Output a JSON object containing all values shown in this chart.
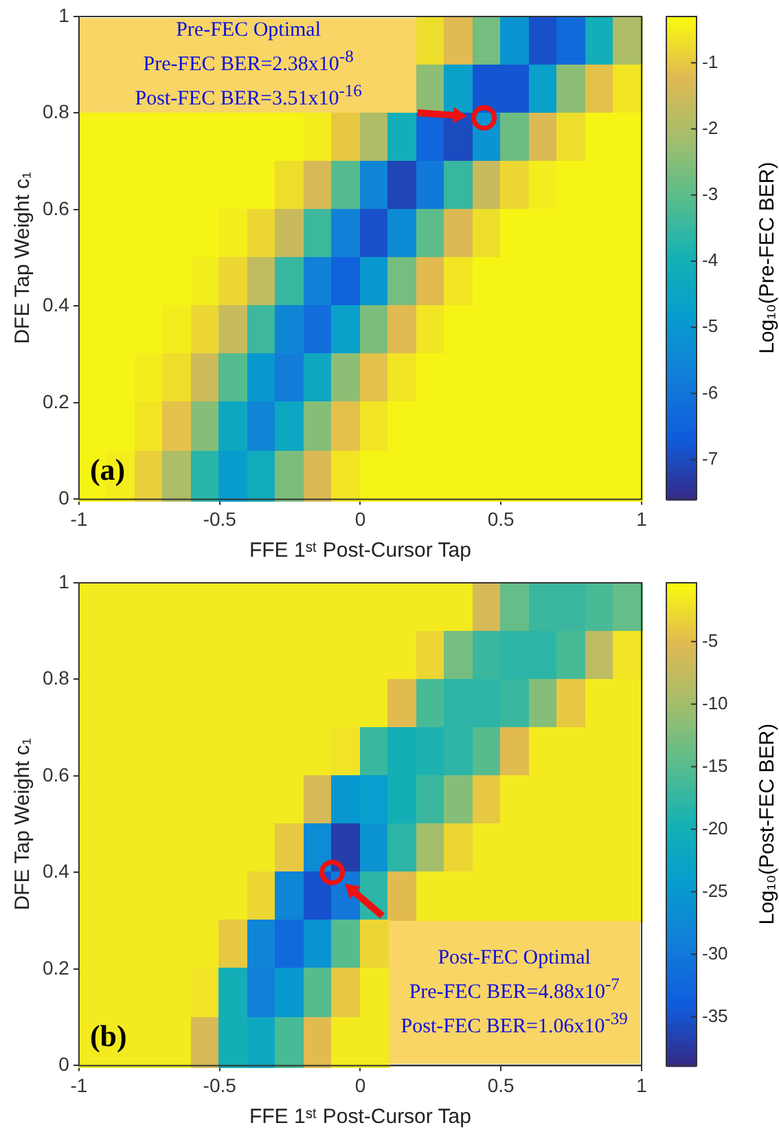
{
  "chart_data": [
    {
      "type": "heatmap",
      "xlabel": "FFE 1ˢᵗ Post-Cursor Tap",
      "ylabel": "DFE Tap Weight c₁",
      "clabel": "Log₁₀(Pre-FEC BER)",
      "xlim": [
        -1,
        1
      ],
      "ylim": [
        0,
        1
      ],
      "xticks": [
        -1,
        -0.5,
        0,
        0.5,
        1
      ],
      "yticks": [
        0,
        0.2,
        0.4,
        0.6,
        0.8,
        1
      ],
      "clim": [
        -7.6,
        -0.3
      ],
      "cticks": [
        -1,
        -2,
        -3,
        -4,
        -5,
        -6,
        -7
      ],
      "cells": [
        [
          null,
          null,
          null,
          null,
          null,
          null,
          null,
          null,
          null,
          null,
          null,
          null,
          -0.7,
          -1.2,
          -2.7,
          -5.1,
          -6.9,
          -6.3,
          -4.1,
          -2.0
        ],
        [
          null,
          null,
          null,
          null,
          null,
          null,
          null,
          null,
          null,
          null,
          null,
          null,
          -2.4,
          -4.7,
          -6.8,
          -6.8,
          -4.7,
          -2.4,
          -1.1,
          -0.6
        ],
        [
          -0.4,
          -0.4,
          -0.4,
          -0.4,
          -0.4,
          -0.4,
          -0.4,
          -0.4,
          -0.5,
          -1.0,
          -2.0,
          -4.1,
          -6.4,
          -7.0,
          -5.1,
          -2.8,
          -1.3,
          -0.7,
          -0.4,
          -0.4
        ],
        [
          -0.4,
          -0.4,
          -0.4,
          -0.4,
          -0.4,
          -0.4,
          -0.4,
          -0.7,
          -1.4,
          -3.1,
          -5.5,
          -7.1,
          -5.9,
          -3.5,
          -1.6,
          -0.8,
          -0.5,
          -0.4,
          -0.4,
          -0.4
        ],
        [
          -0.4,
          -0.4,
          -0.4,
          -0.4,
          -0.4,
          -0.5,
          -0.8,
          -1.6,
          -3.4,
          -5.7,
          -6.9,
          -5.4,
          -3.0,
          -1.3,
          -0.7,
          -0.4,
          -0.4,
          -0.4,
          -0.4,
          -0.4
        ],
        [
          -0.4,
          -0.4,
          -0.4,
          -0.4,
          -0.5,
          -0.8,
          -1.7,
          -3.5,
          -5.7,
          -6.5,
          -5.0,
          -2.7,
          -1.2,
          -0.6,
          -0.4,
          -0.4,
          -0.4,
          -0.4,
          -0.4,
          -0.4
        ],
        [
          -0.4,
          -0.4,
          -0.4,
          -0.5,
          -0.8,
          -1.6,
          -3.4,
          -5.5,
          -6.2,
          -4.7,
          -2.6,
          -1.2,
          -0.6,
          -0.4,
          -0.4,
          -0.4,
          -0.4,
          -0.4,
          -0.4,
          -0.4
        ],
        [
          -0.4,
          -0.4,
          -0.5,
          -0.7,
          -1.5,
          -3.1,
          -5.0,
          -5.8,
          -4.4,
          -2.4,
          -1.1,
          -0.6,
          -0.4,
          -0.4,
          -0.4,
          -0.4,
          -0.4,
          -0.4,
          -0.4,
          -0.4
        ],
        [
          -0.4,
          -0.4,
          -0.6,
          -1.1,
          -2.5,
          -4.4,
          -5.5,
          -4.4,
          -2.5,
          -1.1,
          -0.6,
          -0.4,
          -0.4,
          -0.4,
          -0.4,
          -0.4,
          -0.4,
          -0.4,
          -0.4,
          -0.4
        ],
        [
          -0.4,
          -0.5,
          -0.9,
          -2.0,
          -3.7,
          -4.8,
          -4.2,
          -2.6,
          -1.3,
          -0.6,
          -0.4,
          -0.4,
          -0.4,
          -0.4,
          -0.4,
          -0.4,
          -0.4,
          -0.4,
          -0.4,
          -0.4
        ]
      ],
      "annotations": [
        "(a)",
        "Pre-FEC Optimal",
        "Pre-FEC BER=2.38x10$^{-8}$",
        "Post-FEC BER=3.51x10$^{-16}$"
      ],
      "series": [
        {
          "type": "scatter",
          "x": [
            0.44
          ],
          "values": [
            0.79
          ],
          "color": "#ee1111",
          "marker": "circle"
        }
      ]
    },
    {
      "type": "heatmap",
      "xlabel": "FFE 1ˢᵗ Post-Cursor Tap",
      "ylabel": "DFE Tap Weight c₁",
      "clabel": "Log₁₀(Post-FEC BER)",
      "xlim": [
        -1,
        1
      ],
      "ylim": [
        0,
        1
      ],
      "xticks": [
        -1,
        -0.5,
        0,
        0.5,
        1
      ],
      "yticks": [
        0,
        0.2,
        0.4,
        0.6,
        0.8,
        1
      ],
      "clim": [
        -38.9,
        -0.3
      ],
      "cticks": [
        -5,
        -10,
        -15,
        -20,
        -25,
        -30,
        -35
      ],
      "cells": [
        [
          -1.5,
          -1.5,
          -1.5,
          -1.5,
          -1.5,
          -1.5,
          -1.5,
          -1.5,
          -1.5,
          -1.5,
          -1.5,
          -1.5,
          -1.5,
          -1.5,
          -6,
          -14,
          -17,
          -17,
          -16,
          -14
        ],
        [
          -1.5,
          -1.5,
          -1.5,
          -1.5,
          -1.5,
          -1.5,
          -1.5,
          -1.5,
          -1.5,
          -1.5,
          -1.5,
          -1.5,
          -3,
          -13,
          -17,
          -18,
          -18,
          -16,
          -8,
          -2
        ],
        [
          -1.5,
          -1.5,
          -1.5,
          -1.5,
          -1.5,
          -1.5,
          -1.5,
          -1.5,
          -1.5,
          -1.5,
          -1.5,
          -5,
          -16,
          -18,
          -18,
          -17,
          -12,
          -4,
          -1.5,
          -1.5
        ],
        [
          -1.5,
          -1.5,
          -1.5,
          -1.5,
          -1.5,
          -1.5,
          -1.5,
          -1.5,
          -1.5,
          -2,
          -17,
          -20,
          -19,
          -18,
          -15,
          -5,
          -1.5,
          -1.5,
          -1.5,
          -1.5
        ],
        [
          -1.5,
          -1.5,
          -1.5,
          -1.5,
          -1.5,
          -1.5,
          -1.5,
          -1.5,
          -6,
          -25,
          -24,
          -20,
          -17,
          -12,
          -4,
          -1.5,
          -1.5,
          -1.5,
          -1.5,
          -1.5
        ],
        [
          -1.5,
          -1.5,
          -1.5,
          -1.5,
          -1.5,
          -1.5,
          -1.5,
          -4,
          -27,
          -37,
          -26,
          -18,
          -10,
          -3,
          -1.5,
          -1.5,
          -1.5,
          -1.5,
          -1.5,
          -1.5
        ],
        [
          -1.5,
          -1.5,
          -1.5,
          -1.5,
          -1.5,
          -1.5,
          -3,
          -28,
          -35,
          -30,
          -18,
          -5,
          -1.5,
          -1.5,
          -1.5,
          -1.5,
          -1.5,
          -1.5,
          -1.5,
          -1.5
        ],
        [
          -1.5,
          -1.5,
          -1.5,
          -1.5,
          -1.5,
          -4,
          -28,
          -32,
          -26,
          -15,
          -3,
          null,
          null,
          null,
          null,
          null,
          null,
          null,
          null,
          null
        ],
        [
          -1.5,
          -1.5,
          -1.5,
          -1.5,
          -2,
          -20,
          -29,
          -25,
          -15,
          -4,
          -1.5,
          null,
          null,
          null,
          null,
          null,
          null,
          null,
          null,
          null
        ],
        [
          -1.5,
          -1.5,
          -1.5,
          -1.5,
          -6,
          -20,
          -22,
          -16,
          -5,
          -1.5,
          -1.5,
          null,
          null,
          null,
          null,
          null,
          null,
          null,
          null,
          null
        ]
      ],
      "annotations": [
        "(b)",
        "Post-FEC Optimal",
        "Pre-FEC BER=4.88x10$^{-7}$",
        "Post-FEC BER=1.06x10$^{-39}$"
      ],
      "series": [
        {
          "type": "scatter",
          "x": [
            -0.1
          ],
          "values": [
            0.4
          ],
          "color": "#ee1111",
          "marker": "circle"
        }
      ]
    }
  ]
}
